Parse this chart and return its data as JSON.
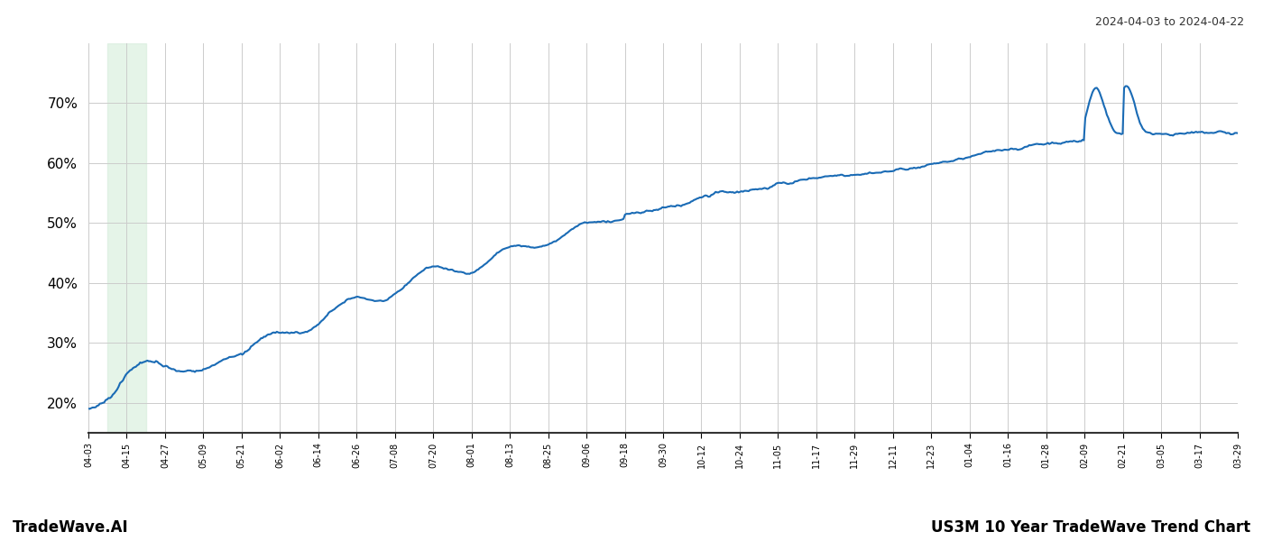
{
  "title_top_right": "2024-04-03 to 2024-04-22",
  "footer_left": "TradeWave.AI",
  "footer_right": "US3M 10 Year TradeWave Trend Chart",
  "line_color": "#1a6bb5",
  "line_width": 1.5,
  "shade_color": "#d4edda",
  "shade_alpha": 0.6,
  "background_color": "#ffffff",
  "grid_color": "#cccccc",
  "y_ticks": [
    20,
    30,
    40,
    50,
    60,
    70
  ],
  "y_min": 15,
  "y_max": 80,
  "x_tick_labels": [
    "04-03",
    "04-15",
    "04-27",
    "05-09",
    "05-21",
    "06-02",
    "06-14",
    "06-26",
    "07-08",
    "07-20",
    "08-01",
    "08-13",
    "08-25",
    "09-06",
    "09-18",
    "09-30",
    "10-12",
    "10-24",
    "11-05",
    "11-17",
    "11-29",
    "12-11",
    "12-23",
    "01-04",
    "01-16",
    "01-28",
    "02-09",
    "02-21",
    "03-05",
    "03-17",
    "03-29"
  ],
  "shade_label_start": "04-09",
  "shade_label_end": "04-21",
  "n_ticks": 31
}
